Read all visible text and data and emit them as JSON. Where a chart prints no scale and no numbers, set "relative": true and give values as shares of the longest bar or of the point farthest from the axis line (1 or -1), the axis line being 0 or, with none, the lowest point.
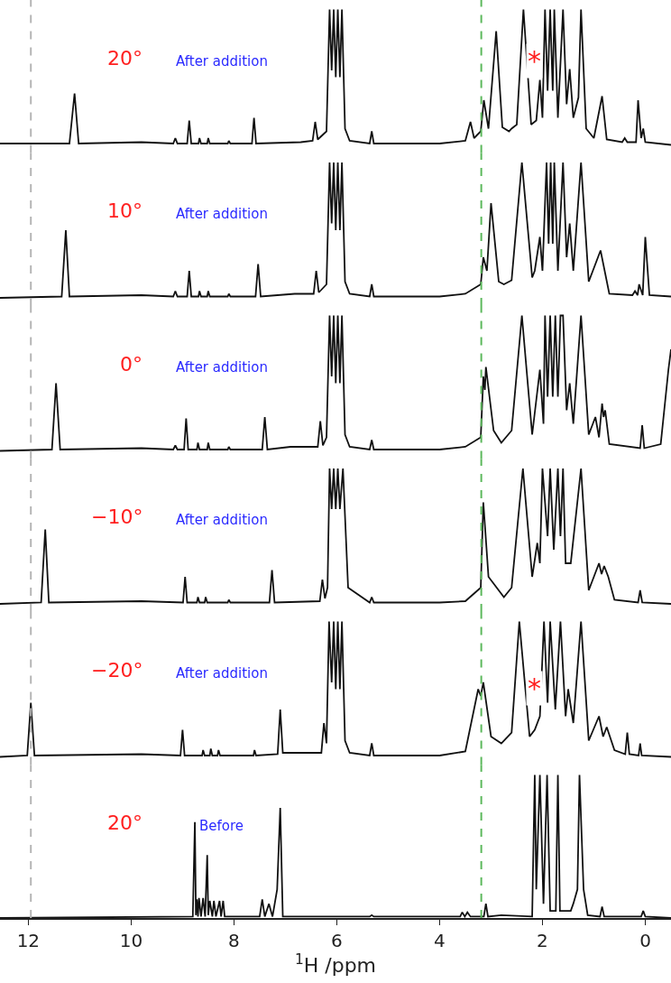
{
  "chart_data": [
    {
      "type": "line",
      "relative": true,
      "color": "#111111",
      "xlim": [
        12.55,
        -0.5
      ],
      "tick_labels": false,
      "annotations": [
        "20°",
        "After addition",
        "*"
      ],
      "ref_lines": [
        {
          "axis": "x",
          "value": 11.95,
          "color": "#b5b5b5",
          "line_style": "dashed"
        },
        {
          "axis": "x",
          "value": 3.19,
          "color": "#5cb85c",
          "line_style": "dashed"
        }
      ],
      "x": [
        12.55,
        11.2,
        11.1,
        11.02,
        9.8,
        9.18,
        9.14,
        9.1,
        8.91,
        8.87,
        8.83,
        8.69,
        8.67,
        8.64,
        8.52,
        8.5,
        8.47,
        8.12,
        8.1,
        8.07,
        7.65,
        7.61,
        7.57,
        6.7,
        6.47,
        6.42,
        6.37,
        6.2,
        6.14,
        6.1,
        6.06,
        6.02,
        5.98,
        5.94,
        5.9,
        5.84,
        5.75,
        5.36,
        5.32,
        5.28,
        4.0,
        3.5,
        3.4,
        3.33,
        3.2,
        3.14,
        3.05,
        2.9,
        2.78,
        2.65,
        2.6,
        2.5,
        2.37,
        2.22,
        2.12,
        2.05,
        2.0,
        1.95,
        1.9,
        1.85,
        1.8,
        1.77,
        1.7,
        1.6,
        1.53,
        1.47,
        1.4,
        1.3,
        1.25,
        1.15,
        1.0,
        0.84,
        0.75,
        0.45,
        0.4,
        0.35,
        0.18,
        0.14,
        0.08,
        0.04,
        0.0,
        -0.5
      ],
      "values": [
        0.01,
        0.01,
        0.38,
        0.01,
        0.02,
        0.01,
        0.05,
        0.01,
        0.01,
        0.18,
        0.01,
        0.01,
        0.05,
        0.01,
        0.01,
        0.05,
        0.01,
        0.01,
        0.03,
        0.01,
        0.01,
        0.2,
        0.01,
        0.02,
        0.03,
        0.17,
        0.04,
        0.1,
        1,
        0.55,
        1,
        0.5,
        1,
        0.5,
        1,
        0.12,
        0.03,
        0.01,
        0.1,
        0.01,
        0.01,
        0.03,
        0.17,
        0.05,
        0.1,
        0.33,
        0.12,
        0.84,
        0.13,
        0.1,
        0.12,
        0.15,
        1,
        0.15,
        0.18,
        0.48,
        0.2,
        1,
        0.4,
        1,
        0.4,
        1,
        0.2,
        1,
        0.3,
        0.56,
        0.2,
        0.35,
        1,
        0.12,
        0.05,
        0.36,
        0.04,
        0.02,
        0.05,
        0.02,
        0.02,
        0.33,
        0.05,
        0.12,
        0.02,
        0.0
      ]
    },
    {
      "type": "line",
      "relative": true,
      "color": "#111111",
      "xlim": [
        12.55,
        -0.5
      ],
      "tick_labels": false,
      "annotations": [
        "10°",
        "After addition"
      ],
      "ref_lines": [
        {
          "axis": "x",
          "value": 11.95,
          "color": "#b5b5b5",
          "line_style": "dashed"
        },
        {
          "axis": "x",
          "value": 3.19,
          "color": "#5cb85c",
          "line_style": "dashed"
        }
      ],
      "x": [
        12.55,
        11.35,
        11.27,
        11.2,
        9.8,
        9.18,
        9.14,
        9.1,
        8.91,
        8.87,
        8.83,
        8.69,
        8.67,
        8.64,
        8.52,
        8.5,
        8.47,
        8.12,
        8.1,
        8.07,
        7.58,
        7.53,
        7.48,
        6.82,
        6.45,
        6.4,
        6.35,
        6.2,
        6.14,
        6.1,
        6.06,
        6.02,
        5.98,
        5.94,
        5.9,
        5.84,
        5.75,
        5.36,
        5.32,
        5.28,
        4.0,
        3.5,
        3.2,
        3.15,
        3.08,
        3.0,
        2.85,
        2.75,
        2.6,
        2.4,
        2.2,
        2.15,
        2.05,
        2.0,
        1.92,
        1.88,
        1.84,
        1.8,
        1.77,
        1.7,
        1.6,
        1.53,
        1.47,
        1.4,
        1.25,
        1.1,
        0.87,
        0.7,
        0.25,
        0.2,
        0.15,
        0.12,
        0.05,
        0.0,
        -0.08,
        -0.5
      ],
      "values": [
        0.0,
        0.01,
        0.5,
        0.01,
        0.02,
        0.01,
        0.05,
        0.01,
        0.01,
        0.2,
        0.01,
        0.01,
        0.05,
        0.01,
        0.01,
        0.05,
        0.01,
        0.01,
        0.03,
        0.01,
        0.01,
        0.25,
        0.01,
        0.03,
        0.03,
        0.2,
        0.04,
        0.1,
        1,
        0.55,
        1,
        0.5,
        1,
        0.5,
        1,
        0.12,
        0.03,
        0.01,
        0.1,
        0.01,
        0.01,
        0.03,
        0.1,
        0.3,
        0.2,
        0.7,
        0.12,
        0.1,
        0.13,
        1,
        0.15,
        0.2,
        0.45,
        0.2,
        1,
        0.4,
        1,
        0.4,
        1,
        0.2,
        1,
        0.3,
        0.55,
        0.2,
        1,
        0.12,
        0.35,
        0.03,
        0.02,
        0.05,
        0.02,
        0.1,
        0.02,
        0.45,
        0.02,
        0.01
      ]
    },
    {
      "type": "line",
      "relative": true,
      "color": "#111111",
      "xlim": [
        12.55,
        -0.5
      ],
      "tick_labels": false,
      "annotations": [
        "0°",
        "After addition"
      ],
      "ref_lines": [
        {
          "axis": "x",
          "value": 11.95,
          "color": "#b5b5b5",
          "line_style": "dashed"
        },
        {
          "axis": "x",
          "value": 3.19,
          "color": "#5cb85c",
          "line_style": "dashed"
        }
      ],
      "x": [
        12.55,
        11.54,
        11.46,
        11.38,
        9.8,
        9.18,
        9.14,
        9.1,
        8.97,
        8.93,
        8.89,
        8.72,
        8.7,
        8.67,
        8.52,
        8.5,
        8.47,
        8.12,
        8.1,
        8.07,
        7.45,
        7.4,
        7.35,
        6.9,
        6.37,
        6.32,
        6.27,
        6.2,
        6.14,
        6.1,
        6.06,
        6.02,
        5.98,
        5.94,
        5.9,
        5.84,
        5.75,
        5.36,
        5.32,
        5.28,
        4.0,
        3.5,
        3.2,
        3.15,
        3.12,
        3.1,
        2.95,
        2.8,
        2.6,
        2.4,
        2.2,
        2.05,
        1.98,
        1.95,
        1.9,
        1.85,
        1.8,
        1.75,
        1.7,
        1.65,
        1.6,
        1.53,
        1.47,
        1.4,
        1.25,
        1.1,
        0.97,
        0.9,
        0.84,
        0.81,
        0.78,
        0.7,
        0.1,
        0.06,
        0.02,
        -0.3,
        -0.45,
        -0.5
      ],
      "values": [
        0.0,
        0.01,
        0.5,
        0.01,
        0.02,
        0.01,
        0.04,
        0.01,
        0.01,
        0.24,
        0.01,
        0.01,
        0.06,
        0.01,
        0.01,
        0.06,
        0.01,
        0.01,
        0.03,
        0.01,
        0.01,
        0.25,
        0.01,
        0.03,
        0.03,
        0.22,
        0.04,
        0.1,
        1,
        0.55,
        1,
        0.5,
        1,
        0.5,
        1,
        0.12,
        0.03,
        0.01,
        0.08,
        0.01,
        0.01,
        0.03,
        0.1,
        0.55,
        0.45,
        0.62,
        0.15,
        0.06,
        0.15,
        1,
        0.12,
        0.6,
        0.2,
        1,
        0.4,
        1,
        0.4,
        1,
        0.4,
        1,
        1,
        0.3,
        0.5,
        0.2,
        1,
        0.12,
        0.25,
        0.1,
        0.35,
        0.25,
        0.3,
        0.05,
        0.02,
        0.19,
        0.02,
        0.05,
        0.6,
        0.75
      ]
    },
    {
      "type": "line",
      "relative": true,
      "color": "#111111",
      "xlim": [
        12.55,
        -0.5
      ],
      "tick_labels": false,
      "annotations": [
        "−10°",
        "After addition"
      ],
      "ref_lines": [
        {
          "axis": "x",
          "value": 11.95,
          "color": "#b5b5b5",
          "line_style": "dashed"
        },
        {
          "axis": "x",
          "value": 3.19,
          "color": "#5cb85c",
          "line_style": "dashed"
        }
      ],
      "x": [
        12.55,
        11.75,
        11.67,
        11.6,
        9.8,
        8.99,
        8.95,
        8.91,
        8.72,
        8.7,
        8.67,
        8.57,
        8.55,
        8.52,
        8.12,
        8.1,
        8.07,
        7.31,
        7.26,
        7.21,
        6.33,
        6.28,
        6.23,
        6.18,
        6.14,
        6.1,
        6.06,
        6.02,
        5.98,
        5.94,
        5.88,
        5.78,
        5.36,
        5.32,
        5.28,
        4.0,
        3.5,
        3.2,
        3.15,
        3.05,
        2.75,
        2.6,
        2.38,
        2.2,
        2.1,
        2.05,
        2.0,
        1.9,
        1.85,
        1.78,
        1.7,
        1.65,
        1.6,
        1.55,
        1.45,
        1.25,
        1.1,
        0.9,
        0.85,
        0.8,
        0.72,
        0.6,
        0.14,
        0.1,
        0.06,
        -0.5
      ],
      "values": [
        0.0,
        0.01,
        0.55,
        0.01,
        0.02,
        0.01,
        0.2,
        0.01,
        0.01,
        0.05,
        0.01,
        0.01,
        0.05,
        0.01,
        0.01,
        0.03,
        0.01,
        0.01,
        0.25,
        0.01,
        0.02,
        0.18,
        0.04,
        0.12,
        1,
        0.7,
        1,
        0.7,
        1,
        0.7,
        1,
        0.12,
        0.01,
        0.05,
        0.01,
        0.01,
        0.02,
        0.12,
        0.75,
        0.2,
        0.05,
        0.12,
        1,
        0.2,
        0.45,
        0.3,
        1,
        0.5,
        1,
        0.4,
        1,
        0.5,
        1,
        0.3,
        0.3,
        1,
        0.1,
        0.3,
        0.22,
        0.28,
        0.2,
        0.03,
        0.01,
        0.1,
        0.01,
        0.0
      ]
    },
    {
      "type": "line",
      "relative": true,
      "color": "#111111",
      "xlim": [
        12.55,
        -0.5
      ],
      "tick_labels": false,
      "annotations": [
        "−20°",
        "After addition",
        "*"
      ],
      "ref_lines": [
        {
          "axis": "x",
          "value": 11.95,
          "color": "#b5b5b5",
          "line_style": "dashed"
        },
        {
          "axis": "x",
          "value": 3.19,
          "color": "#5cb85c",
          "line_style": "dashed"
        }
      ],
      "x": [
        12.55,
        12.02,
        11.95,
        11.88,
        9.8,
        9.04,
        9.0,
        8.96,
        8.62,
        8.6,
        8.57,
        8.47,
        8.45,
        8.42,
        8.32,
        8.3,
        8.27,
        7.62,
        7.6,
        7.57,
        7.15,
        7.1,
        7.05,
        6.3,
        6.25,
        6.2,
        6.15,
        6.1,
        6.06,
        6.02,
        5.98,
        5.94,
        5.9,
        5.84,
        5.75,
        5.36,
        5.32,
        5.28,
        4.0,
        3.5,
        3.25,
        3.2,
        3.15,
        3.0,
        2.8,
        2.6,
        2.45,
        2.25,
        2.15,
        2.05,
        1.97,
        1.9,
        1.85,
        1.75,
        1.65,
        1.55,
        1.5,
        1.4,
        1.25,
        1.1,
        0.9,
        0.82,
        0.75,
        0.6,
        0.39,
        0.35,
        0.31,
        0.13,
        0.1,
        0.07,
        -0.5
      ],
      "values": [
        0.0,
        0.01,
        0.4,
        0.01,
        0.02,
        0.01,
        0.2,
        0.01,
        0.01,
        0.05,
        0.01,
        0.01,
        0.06,
        0.01,
        0.01,
        0.05,
        0.01,
        0.01,
        0.05,
        0.01,
        0.02,
        0.35,
        0.03,
        0.03,
        0.25,
        0.1,
        1,
        0.55,
        1,
        0.5,
        1,
        0.5,
        1,
        0.12,
        0.03,
        0.01,
        0.1,
        0.01,
        0.01,
        0.04,
        0.5,
        0.45,
        0.55,
        0.15,
        0.1,
        0.18,
        1,
        0.15,
        0.2,
        0.3,
        1,
        0.4,
        1,
        0.35,
        1,
        0.3,
        0.5,
        0.25,
        1,
        0.12,
        0.3,
        0.15,
        0.22,
        0.05,
        0.02,
        0.18,
        0.02,
        0.01,
        0.1,
        0.01,
        0.0
      ]
    },
    {
      "type": "line",
      "relative": true,
      "color": "#111111",
      "xlim": [
        12.55,
        -0.5
      ],
      "xticks": [
        12,
        10,
        8,
        6,
        4,
        2,
        0
      ],
      "tick_labels": "x",
      "xlabel": "$^{1}$H /ppm",
      "annotations": [
        "20°",
        "Before"
      ],
      "ref_lines": [
        {
          "axis": "x",
          "value": 11.95,
          "color": "#b5b5b5",
          "line_style": "dashed"
        },
        {
          "axis": "x",
          "value": 3.19,
          "color": "#5cb85c",
          "line_style": "dashed"
        }
      ],
      "x": [
        12.55,
        8.8,
        8.76,
        8.74,
        8.72,
        8.7,
        8.68,
        8.64,
        8.6,
        8.56,
        8.52,
        8.5,
        8.47,
        8.42,
        8.39,
        8.35,
        8.28,
        8.25,
        8.21,
        8.18,
        8.14,
        7.5,
        7.45,
        7.4,
        7.32,
        7.25,
        7.16,
        7.1,
        7.05,
        5.36,
        5.32,
        5.28,
        3.6,
        3.56,
        3.51,
        3.46,
        3.4,
        3.14,
        3.1,
        3.06,
        2.8,
        2.2,
        2.15,
        2.12,
        2.05,
        1.98,
        1.91,
        1.85,
        1.74,
        1.7,
        1.66,
        1.45,
        1.4,
        1.32,
        1.28,
        1.2,
        1.12,
        0.88,
        0.84,
        0.8,
        0.08,
        0.04,
        0.0,
        -0.5
      ],
      "values": [
        0.0,
        0.01,
        0.67,
        0.02,
        0.13,
        0.01,
        0.14,
        0.01,
        0.14,
        0.01,
        0.44,
        0.02,
        0.12,
        0.01,
        0.12,
        0.01,
        0.12,
        0.01,
        0.12,
        0.01,
        0.01,
        0.01,
        0.13,
        0.01,
        0.1,
        0.01,
        0.2,
        0.77,
        0.01,
        0.01,
        0.02,
        0.01,
        0.01,
        0.04,
        0.01,
        0.04,
        0.01,
        0.01,
        0.1,
        0.01,
        0.02,
        0.01,
        1,
        0.2,
        1,
        0.1,
        1,
        0.05,
        0.05,
        1,
        0.05,
        0.05,
        0.1,
        0.2,
        1,
        0.2,
        0.02,
        0.01,
        0.08,
        0.01,
        0.01,
        0.05,
        0.01,
        0.0
      ]
    }
  ]
}
